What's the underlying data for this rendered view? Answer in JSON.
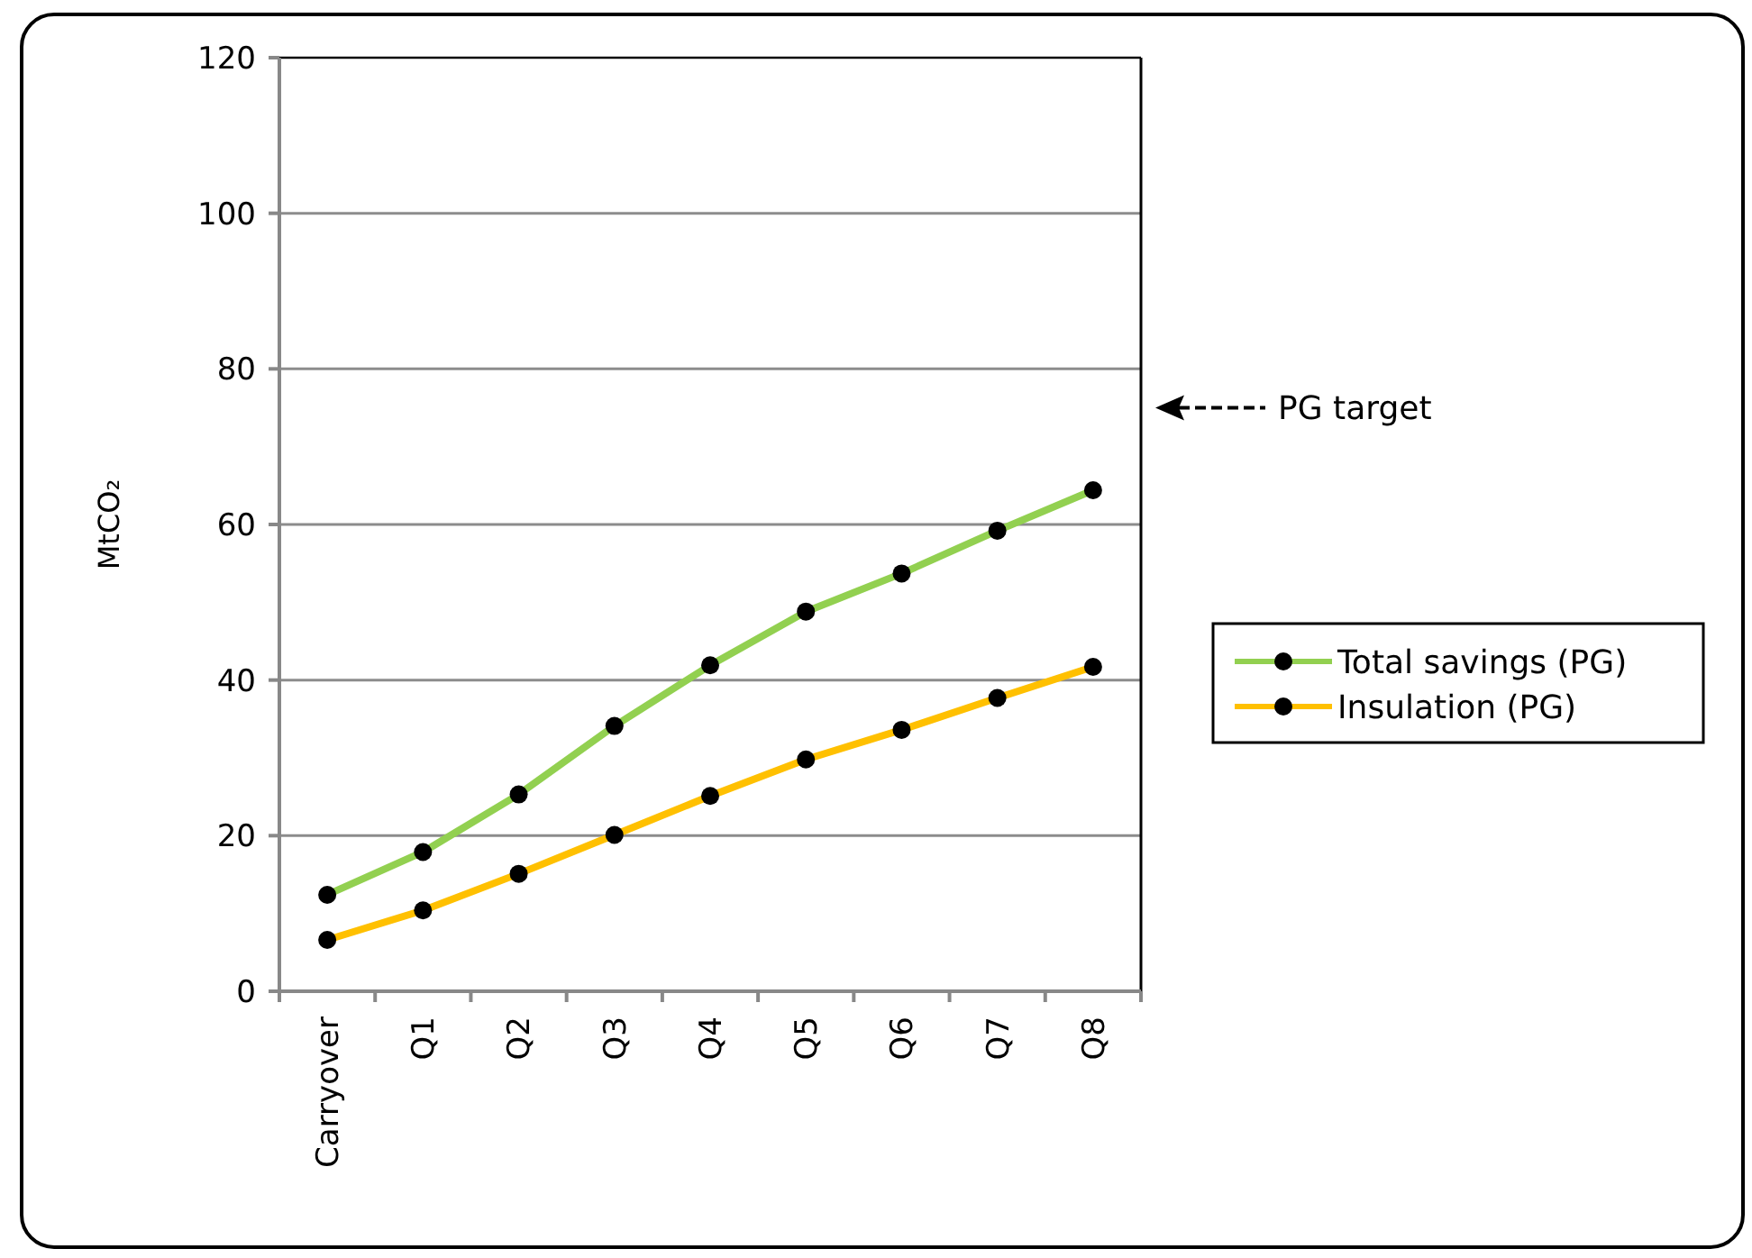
{
  "chart_data": {
    "type": "line",
    "ylabel": "MtCO₂",
    "categories": [
      "Carryover",
      "Q1",
      "Q2",
      "Q3",
      "Q4",
      "Q5",
      "Q6",
      "Q7",
      "Q8"
    ],
    "series": [
      {
        "name": "Total savings (PG)",
        "color": "#92d050",
        "values": [
          12.4,
          17.9,
          25.3,
          34.1,
          41.9,
          48.8,
          53.7,
          59.2,
          64.4
        ]
      },
      {
        "name": "Insulation (PG)",
        "color": "#ffc000",
        "values": [
          6.6,
          10.4,
          15.1,
          20.1,
          25.1,
          29.8,
          33.6,
          37.7,
          41.7
        ]
      }
    ],
    "ylim": [
      0,
      120
    ],
    "yticks": [
      0,
      20,
      40,
      60,
      80,
      100,
      120
    ],
    "grid": "y",
    "legend": "right",
    "marker": "circle",
    "line_style": "solid",
    "ref_lines": [
      {
        "axis": "y",
        "value": 75,
        "label": "PG target",
        "line_style": "dashed"
      }
    ]
  }
}
